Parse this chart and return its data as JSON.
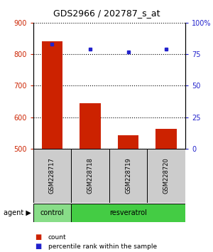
{
  "title": "GDS2966 / 202787_s_at",
  "samples": [
    "GSM228717",
    "GSM228718",
    "GSM228719",
    "GSM228720"
  ],
  "counts": [
    840,
    645,
    543,
    563
  ],
  "percentiles": [
    83,
    79,
    77,
    79
  ],
  "ylim_left": [
    500,
    900
  ],
  "ylim_right": [
    0,
    100
  ],
  "yticks_left": [
    500,
    600,
    700,
    800,
    900
  ],
  "yticks_right": [
    0,
    25,
    50,
    75,
    100
  ],
  "ytick_labels_right": [
    "0",
    "25",
    "50",
    "75",
    "100%"
  ],
  "bar_color": "#cc2200",
  "dot_color": "#2222cc",
  "control_color": "#88dd88",
  "resveratrol_color": "#44cc44",
  "sample_box_color": "#cccccc",
  "background_color": "#ffffff",
  "title_fontsize": 9,
  "tick_fontsize": 7,
  "sample_fontsize": 6,
  "agent_fontsize": 7,
  "legend_fontsize": 6.5
}
